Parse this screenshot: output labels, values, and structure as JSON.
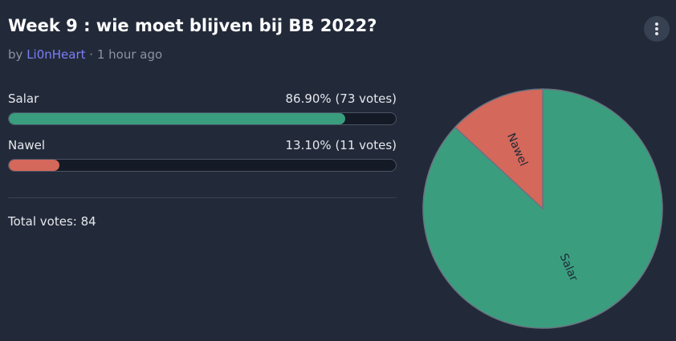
{
  "header": {
    "title": "Week 9 : wie moet blijven bij BB 2022?",
    "by": "by",
    "author": "Li0nHeart",
    "time": "· 1 hour ago"
  },
  "options": [
    {
      "name": "Salar",
      "percent": 86.9,
      "votes": 73,
      "label": "86.90% (73 votes)",
      "color": "#3a9e7e"
    },
    {
      "name": "Nawel",
      "percent": 13.1,
      "votes": 11,
      "label": "13.10% (11 votes)",
      "color": "#d4685a"
    }
  ],
  "total": {
    "label": "Total votes:",
    "value": 84
  }
}
